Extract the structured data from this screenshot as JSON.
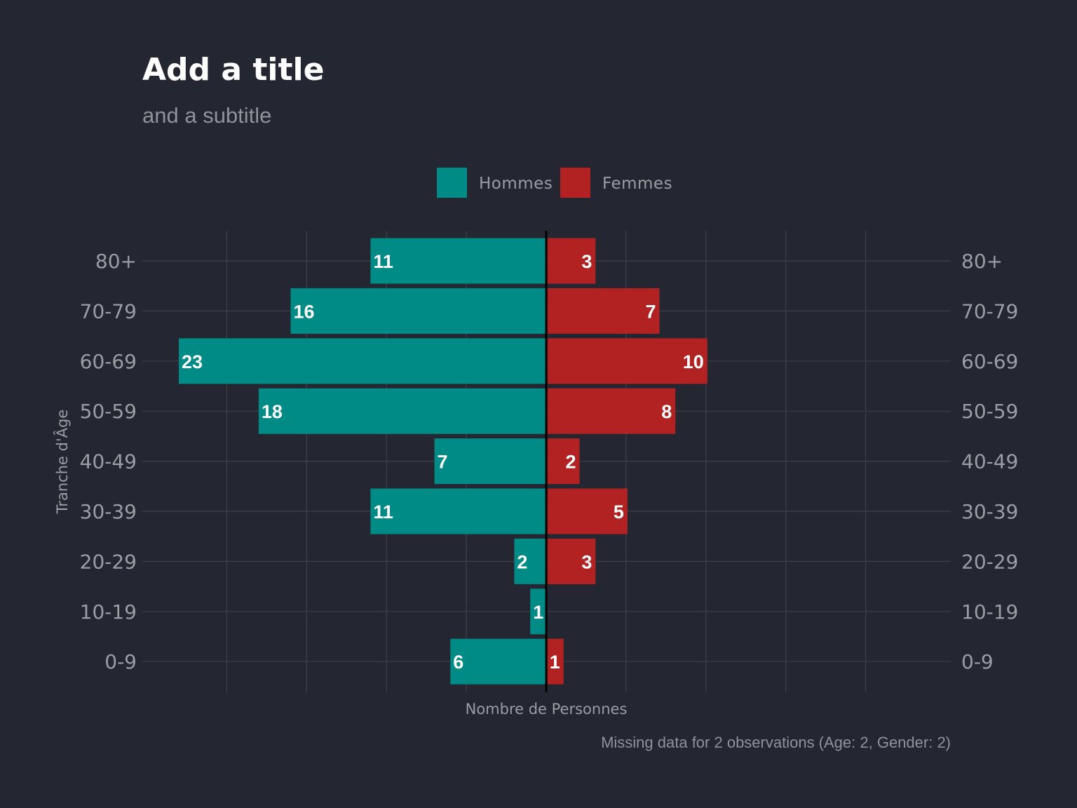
{
  "chart_data": {
    "type": "bar",
    "orientation": "horizontal",
    "layout": "population-pyramid",
    "title": "Add a title",
    "subtitle": "and a subtitle",
    "xlabel": "Nombre de Personnes",
    "ylabel": "Tranche d'Âge",
    "caption": "Missing data for 2 observations (Age: 2, Gender: 2)",
    "categories": [
      "80+",
      "70-79",
      "60-69",
      "50-59",
      "40-49",
      "30-39",
      "20-29",
      "10-19",
      "0-9"
    ],
    "series": [
      {
        "name": "Hommes",
        "color": "#008b87",
        "side": "left",
        "values": [
          11,
          16,
          23,
          18,
          7,
          11,
          2,
          1,
          6
        ]
      },
      {
        "name": "Femmes",
        "color": "#b22222",
        "side": "right",
        "values": [
          3,
          7,
          10,
          8,
          2,
          5,
          3,
          0,
          1
        ]
      }
    ],
    "xlim": [
      -23,
      25
    ],
    "grid": true,
    "legend_position": "top",
    "center_line_color": "#000000",
    "background_color": "#242731"
  }
}
